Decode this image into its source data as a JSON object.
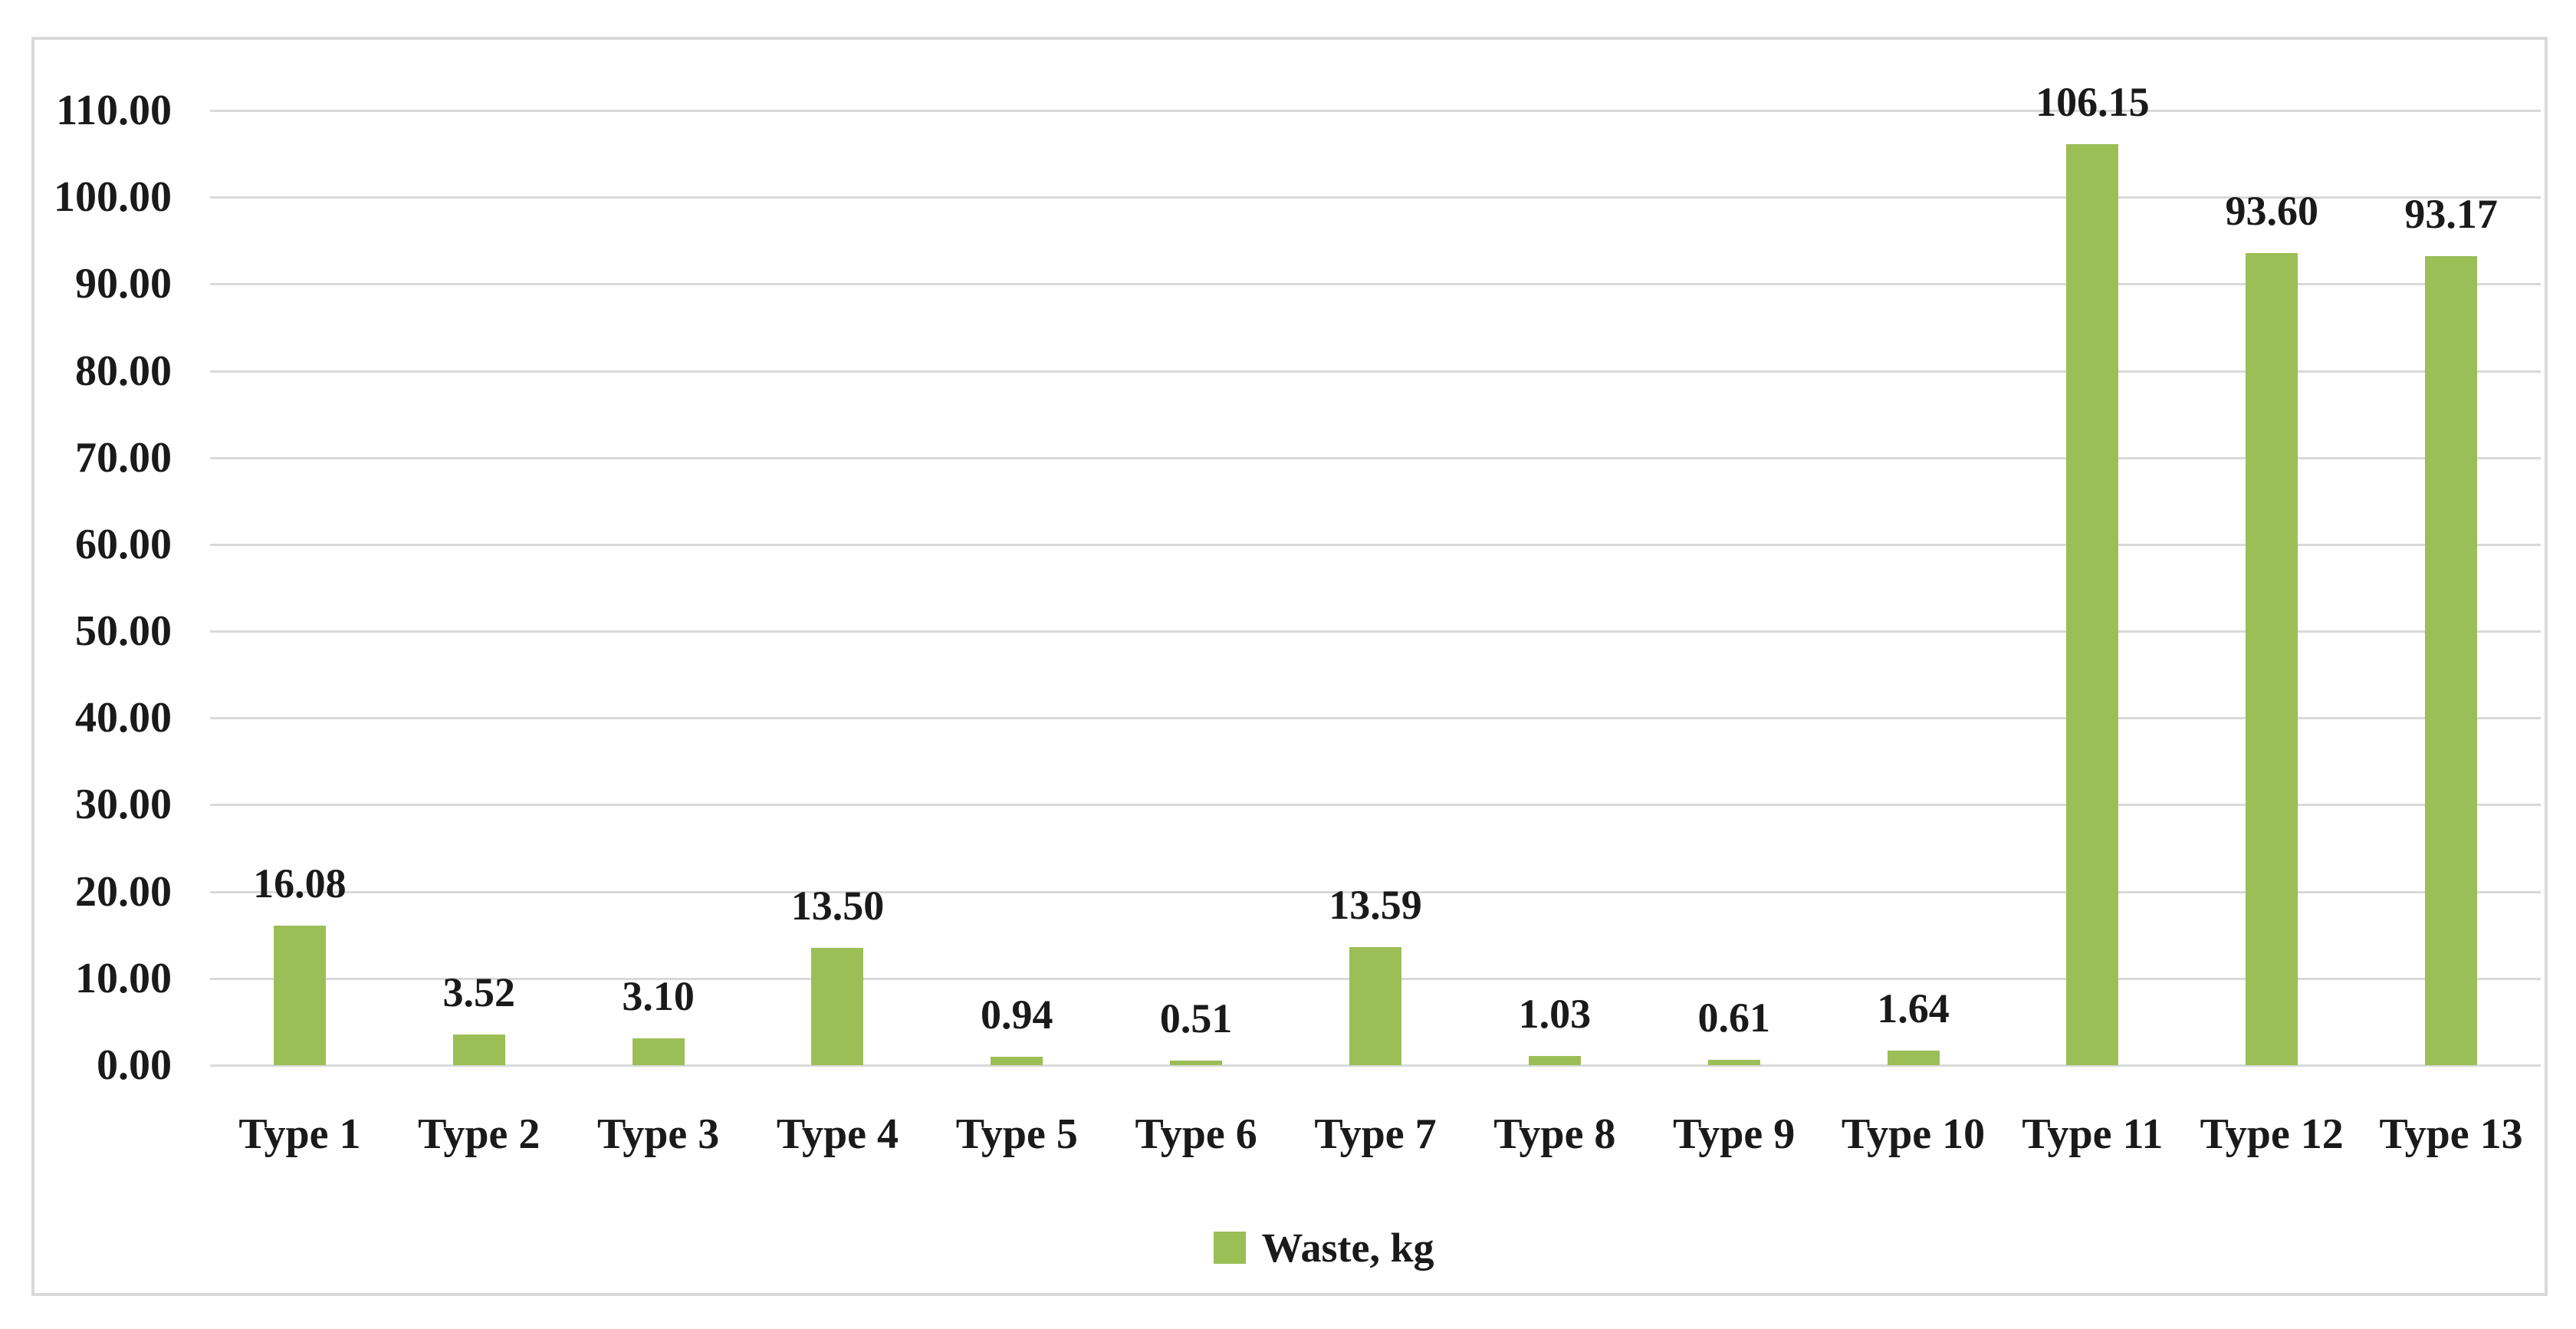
{
  "chart_data": {
    "type": "bar",
    "title": "",
    "xlabel": "",
    "ylabel": "",
    "categories": [
      "Type 1",
      "Type 2",
      "Type 3",
      "Type 4",
      "Type 5",
      "Type 6",
      "Type 7",
      "Type 8",
      "Type 9",
      "Type 10",
      "Type 11",
      "Type 12",
      "Type 13"
    ],
    "values": [
      16.08,
      3.52,
      3.1,
      13.5,
      0.94,
      0.51,
      13.59,
      1.03,
      0.61,
      1.64,
      106.15,
      93.6,
      93.17
    ],
    "value_labels": [
      "16.08",
      "3.52",
      "3.10",
      "13.50",
      "0.94",
      "0.51",
      "13.59",
      "1.03",
      "0.61",
      "1.64",
      "106.15",
      "93.60",
      "93.17"
    ],
    "series": [
      {
        "name": "Waste, kg",
        "values": [
          16.08,
          3.52,
          3.1,
          13.5,
          0.94,
          0.51,
          13.59,
          1.03,
          0.61,
          1.64,
          106.15,
          93.6,
          93.17
        ]
      }
    ],
    "ylim": [
      0,
      110
    ],
    "ytick_step": 10,
    "ytick_labels": [
      "0.00",
      "10.00",
      "20.00",
      "30.00",
      "40.00",
      "50.00",
      "60.00",
      "70.00",
      "80.00",
      "90.00",
      "100.00",
      "110.00"
    ],
    "grid": "horizontal",
    "legend_position": "bottom-center",
    "colors": {
      "bar": "#9CBE56",
      "gridline": "#D9D9D9",
      "frame_border": "#D9D9D9",
      "text": "#1A1A1A",
      "background": "#FFFFFF"
    }
  },
  "legend": {
    "label": "Waste, kg",
    "swatch_color": "#9CBE56"
  }
}
